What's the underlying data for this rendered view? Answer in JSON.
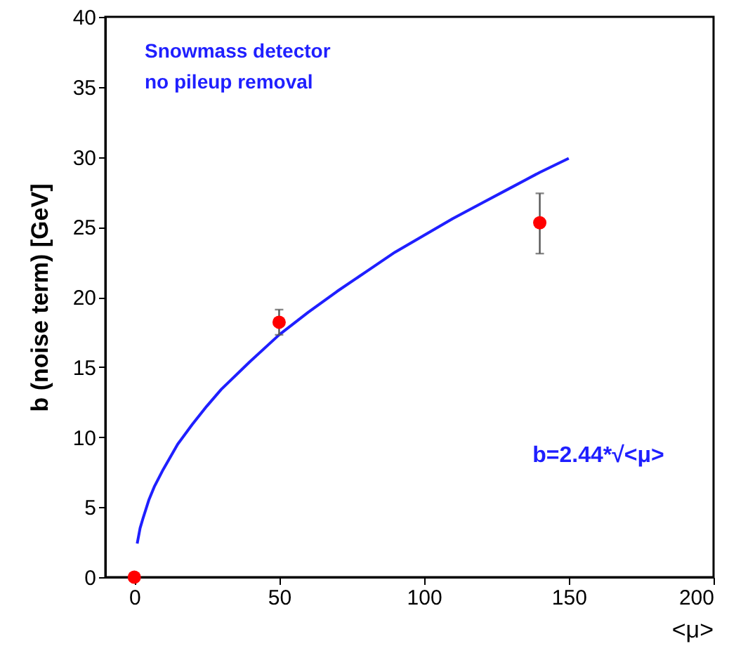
{
  "chart_data": {
    "type": "scatter",
    "xlabel": "<μ>",
    "ylabel": "b (noise term) [GeV]",
    "annotations": [
      "Snowmass detector",
      "no pileup removal",
      "b=2.44*√<μ>"
    ],
    "xlim": [
      -10,
      200
    ],
    "xticks": [
      0,
      50,
      100,
      150,
      200
    ],
    "ylim": [
      0,
      40
    ],
    "yticks": [
      0,
      5,
      10,
      15,
      20,
      25,
      30,
      35,
      40
    ],
    "grid": false,
    "series": [
      {
        "type": "line",
        "color": "#1f1fff",
        "marker": "none",
        "x": [
          1,
          2,
          3,
          5,
          7,
          10,
          15,
          20,
          25,
          30,
          40,
          50,
          60,
          70,
          80,
          90,
          100,
          110,
          120,
          130,
          140,
          150
        ],
        "values": [
          2.4,
          3.5,
          4.2,
          5.5,
          6.5,
          7.7,
          9.5,
          10.9,
          12.2,
          13.4,
          15.4,
          17.3,
          18.9,
          20.4,
          21.8,
          23.2,
          24.4,
          25.6,
          26.7,
          27.8,
          28.9,
          29.9
        ]
      },
      {
        "color": "#ff0000",
        "marker": "circle",
        "x": [
          0,
          50,
          140
        ],
        "values": [
          0,
          18.2,
          25.3
        ],
        "errors": [
          null,
          0.9,
          [
            23.1,
            27.4
          ]
        ]
      }
    ]
  }
}
